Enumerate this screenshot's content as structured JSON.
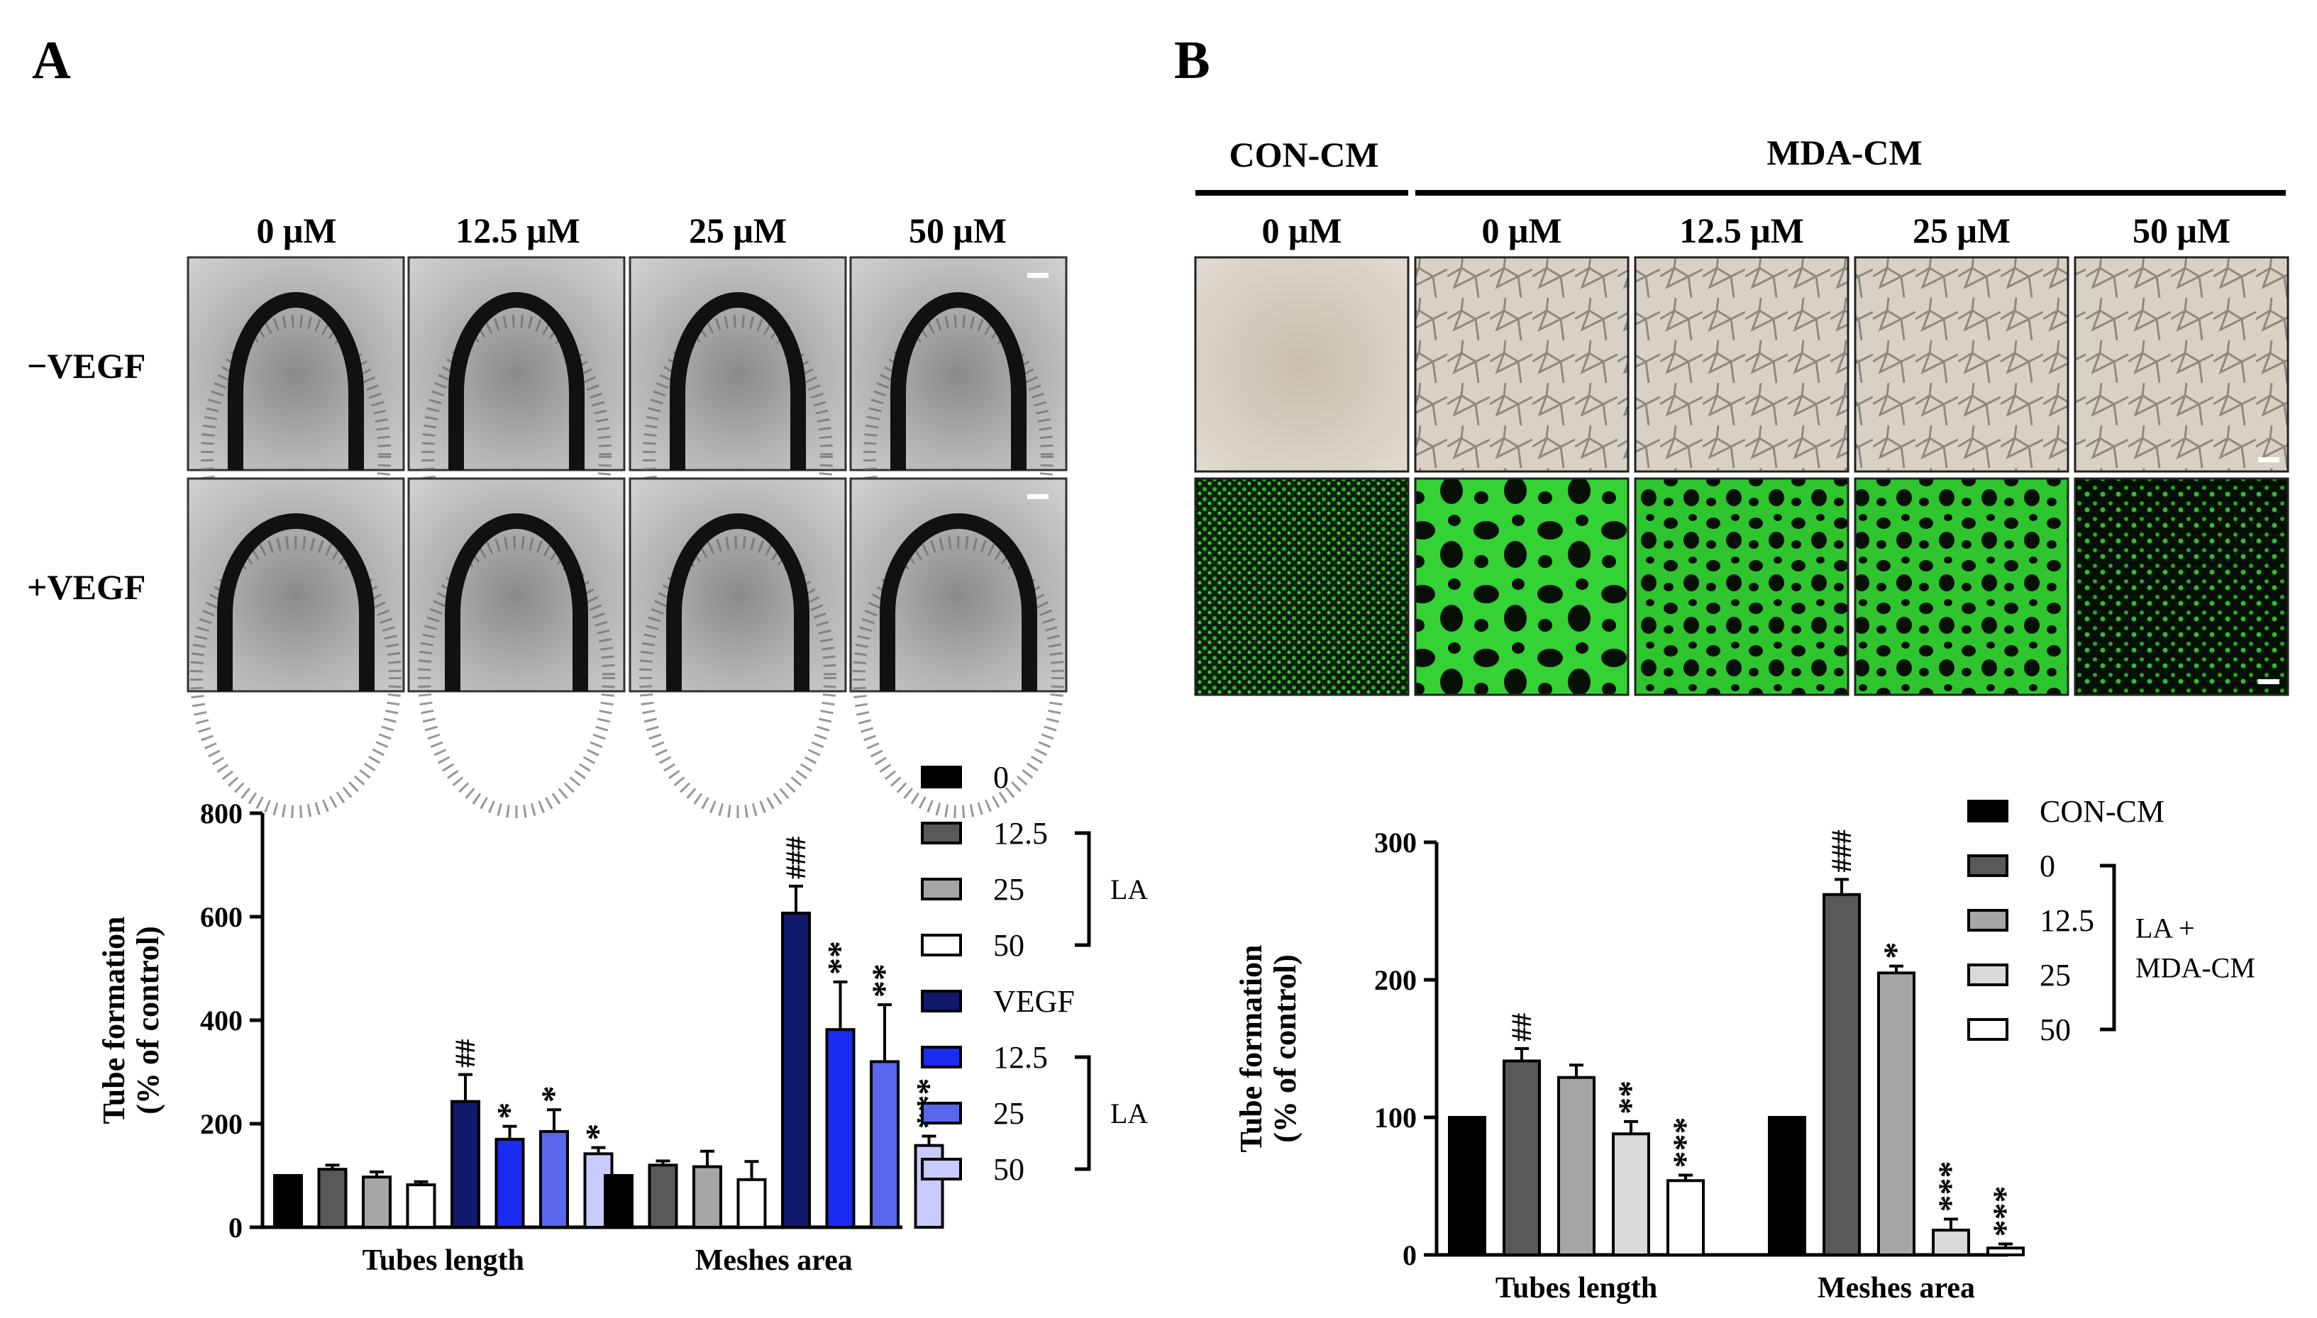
{
  "panel_a": {
    "letter": "A",
    "columns": [
      "0 μM",
      "12.5 μM",
      "25 μM",
      "50 μM"
    ],
    "rows": [
      "−VEGF",
      "+VEGF"
    ]
  },
  "panel_b": {
    "letter": "B",
    "group_left": "CON-CM",
    "group_right": "MDA-CM",
    "columns": [
      "0 μM",
      "0 μM",
      "12.5 μM",
      "25 μM",
      "50 μM"
    ]
  },
  "chart_data": [
    {
      "type": "bar",
      "categories": [
        "Tubes length",
        "Meshes area"
      ],
      "ylabel": "Tube formation\n(% of control)",
      "ylim": [
        0,
        800
      ],
      "yticks": [
        0,
        200,
        400,
        600,
        800
      ],
      "series": [
        {
          "name": "0",
          "color": "#000000",
          "values": [
            100,
            100
          ],
          "errors": [
            0,
            0
          ],
          "marks": [
            "",
            ""
          ]
        },
        {
          "name": "12.5",
          "color": "#595959",
          "values": [
            112,
            120
          ],
          "errors": [
            8,
            8
          ],
          "marks": [
            "",
            ""
          ]
        },
        {
          "name": "25",
          "color": "#a6a6a6",
          "values": [
            97,
            117
          ],
          "errors": [
            10,
            30
          ],
          "marks": [
            "",
            ""
          ]
        },
        {
          "name": "50",
          "color": "#ffffff",
          "values": [
            82,
            92
          ],
          "errors": [
            6,
            35
          ],
          "marks": [
            "",
            ""
          ]
        },
        {
          "name": "VEGF",
          "color": "#10196b",
          "values": [
            243,
            607
          ],
          "errors": [
            52,
            52
          ],
          "marks": [
            "##",
            "###"
          ]
        },
        {
          "name": "12.5",
          "color": "#1a2cf2",
          "values": [
            170,
            382
          ],
          "errors": [
            25,
            92
          ],
          "marks": [
            "*",
            "**"
          ]
        },
        {
          "name": "25",
          "color": "#5a67ec",
          "values": [
            185,
            320
          ],
          "errors": [
            42,
            110
          ],
          "marks": [
            "*",
            "**"
          ]
        },
        {
          "name": "50",
          "color": "#c9cbff",
          "values": [
            142,
            158
          ],
          "errors": [
            12,
            18
          ],
          "marks": [
            "*",
            "***"
          ]
        }
      ],
      "legend_groups": [
        {
          "label": "LA",
          "from": 1,
          "to": 3
        },
        {
          "label": "LA",
          "from": 5,
          "to": 7
        }
      ]
    },
    {
      "type": "bar",
      "categories": [
        "Tubes length",
        "Meshes area"
      ],
      "ylabel": "Tube formation\n(% of control)",
      "ylim": [
        0,
        300
      ],
      "yticks": [
        0,
        100,
        200,
        300
      ],
      "series": [
        {
          "name": "CON-CM",
          "color": "#000000",
          "values": [
            100,
            100
          ],
          "errors": [
            0,
            0
          ],
          "marks": [
            "",
            ""
          ]
        },
        {
          "name": "0",
          "color": "#595959",
          "values": [
            141,
            262
          ],
          "errors": [
            9,
            11
          ],
          "marks": [
            "##",
            "###"
          ]
        },
        {
          "name": "12.5",
          "color": "#a6a6a6",
          "values": [
            129,
            205
          ],
          "errors": [
            9,
            5
          ],
          "marks": [
            "",
            "*"
          ]
        },
        {
          "name": "25",
          "color": "#d9d9d9",
          "values": [
            88,
            18
          ],
          "errors": [
            9,
            8
          ],
          "marks": [
            "**",
            "***"
          ]
        },
        {
          "name": "50",
          "color": "#ffffff",
          "values": [
            54,
            5
          ],
          "errors": [
            4,
            3
          ],
          "marks": [
            "***",
            "***"
          ]
        }
      ],
      "legend_groups": [
        {
          "label": "LA +\nMDA-CM",
          "from": 1,
          "to": 4
        }
      ]
    }
  ]
}
